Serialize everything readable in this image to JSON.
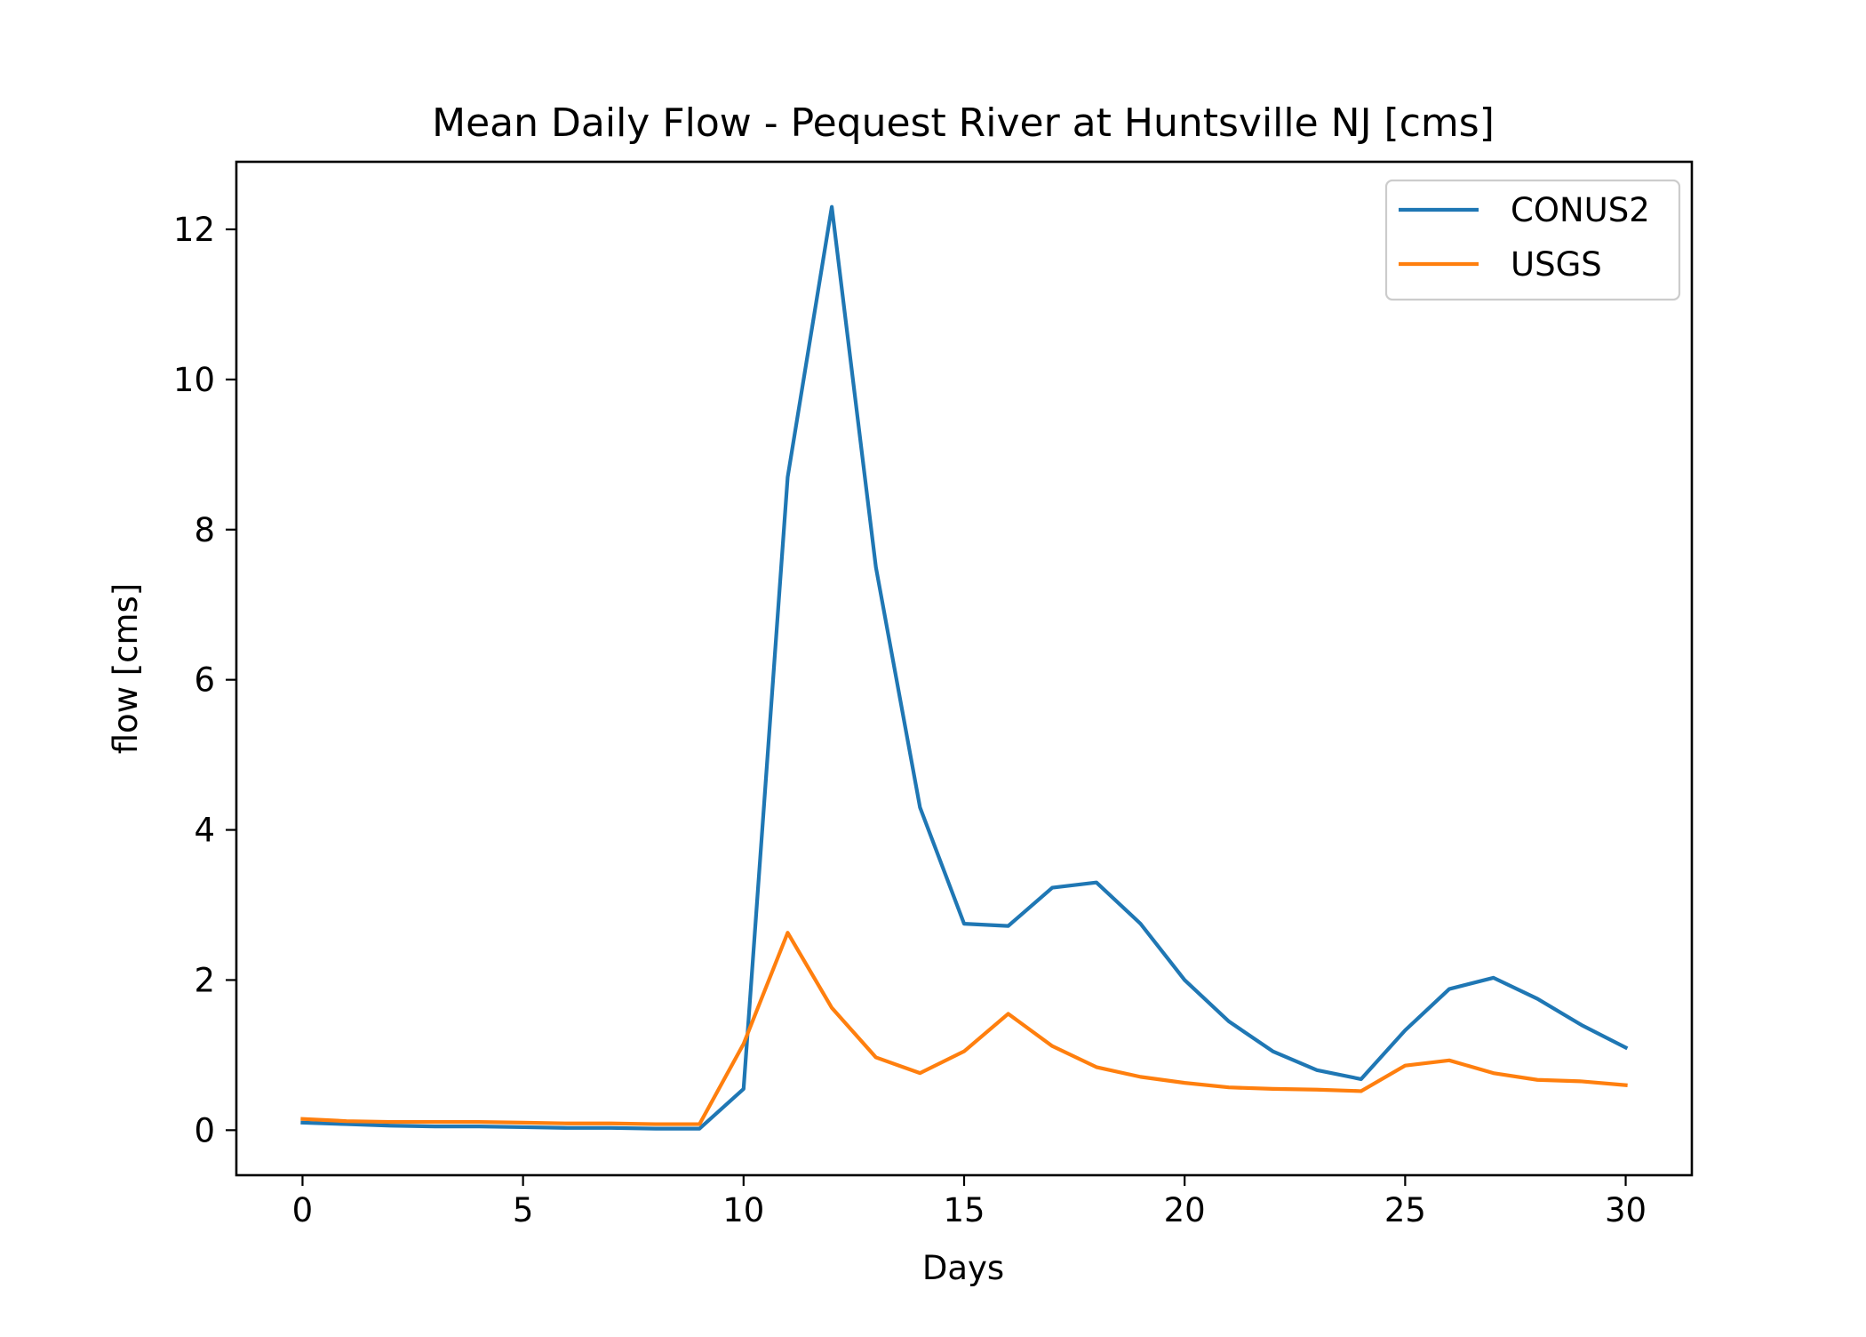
{
  "chart_data": {
    "type": "line",
    "title": "Mean Daily Flow - Pequest River at Huntsville NJ [cms]",
    "xlabel": "Days",
    "ylabel": "flow [cms]",
    "xlim": [
      -1.5,
      31.5
    ],
    "ylim": [
      -0.6,
      12.9
    ],
    "xticks": [
      0,
      5,
      10,
      15,
      20,
      25,
      30
    ],
    "yticks": [
      0,
      2,
      4,
      6,
      8,
      10,
      12
    ],
    "grid": false,
    "legend_position": "top-right",
    "x": [
      0,
      1,
      2,
      3,
      4,
      5,
      6,
      7,
      8,
      9,
      10,
      11,
      12,
      13,
      14,
      15,
      16,
      17,
      18,
      19,
      20,
      21,
      22,
      23,
      24,
      25,
      26,
      27,
      28,
      29,
      30
    ],
    "series": [
      {
        "name": "CONUS2",
        "color": "#1f77b4",
        "values": [
          0.1,
          0.08,
          0.06,
          0.05,
          0.05,
          0.04,
          0.03,
          0.03,
          0.02,
          0.02,
          0.55,
          8.7,
          12.3,
          7.5,
          4.3,
          2.75,
          2.72,
          3.23,
          3.3,
          2.75,
          2.0,
          1.45,
          1.05,
          0.8,
          0.68,
          1.33,
          1.88,
          2.03,
          1.75,
          1.4,
          1.1
        ]
      },
      {
        "name": "USGS",
        "color": "#ff7f0e",
        "values": [
          0.15,
          0.12,
          0.11,
          0.11,
          0.11,
          0.1,
          0.09,
          0.09,
          0.08,
          0.08,
          1.15,
          2.63,
          1.63,
          0.97,
          0.76,
          1.05,
          1.55,
          1.12,
          0.84,
          0.71,
          0.63,
          0.57,
          0.55,
          0.54,
          0.52,
          0.86,
          0.93,
          0.76,
          0.67,
          0.65,
          0.6
        ]
      }
    ]
  }
}
